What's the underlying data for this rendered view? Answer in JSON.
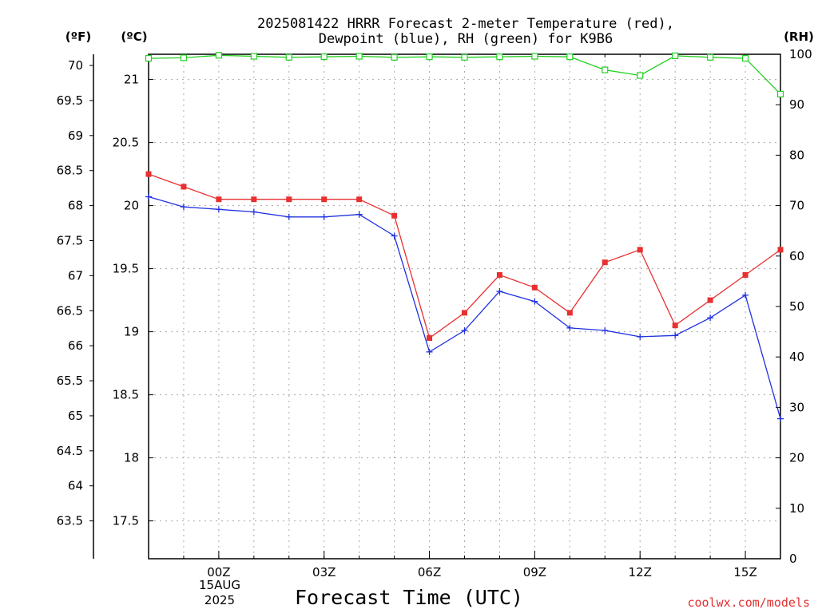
{
  "chart_data": {
    "type": "line",
    "title_line1": "2025081422 HRRR Forecast 2-meter Temperature (red),",
    "title_line2": "Dewpoint (blue), RH (green) for K9B6",
    "xlabel": "Forecast Time (UTC)",
    "credit": "coolwx.com/models",
    "units": {
      "f": "(ºF)",
      "c": "(ºC)",
      "rh": "(RH)"
    },
    "x": [
      "22Z",
      "23Z",
      "00Z",
      "01Z",
      "02Z",
      "03Z",
      "04Z",
      "05Z",
      "06Z",
      "07Z",
      "08Z",
      "09Z",
      "10Z",
      "11Z",
      "12Z",
      "13Z",
      "14Z",
      "15Z",
      "16Z"
    ],
    "x_tick_labels": [
      {
        "hour": "00Z",
        "index": 2
      },
      {
        "hour": "03Z",
        "index": 5
      },
      {
        "hour": "06Z",
        "index": 8
      },
      {
        "hour": "09Z",
        "index": 11
      },
      {
        "hour": "12Z",
        "index": 14
      },
      {
        "hour": "15Z",
        "index": 17
      }
    ],
    "date_label": {
      "day": "15AUG",
      "year": "2025"
    },
    "left_axis_f": {
      "ticks": [
        "70",
        "69.5",
        "69",
        "68.5",
        "68",
        "67.5",
        "67",
        "66.5",
        "66",
        "65.5",
        "65",
        "64.5",
        "64",
        "63.5"
      ]
    },
    "left_axis_c": {
      "ylim": [
        17.2,
        21.2
      ],
      "ticks": [
        "21",
        "20.5",
        "20",
        "19.5",
        "19",
        "18.5",
        "18",
        "17.5"
      ]
    },
    "right_axis_rh": {
      "ylim": [
        0,
        100
      ],
      "ticks": [
        "100",
        "90",
        "80",
        "70",
        "60",
        "50",
        "40",
        "30",
        "20",
        "10",
        "0"
      ]
    },
    "grid": true,
    "series": [
      {
        "key": "temp",
        "color": "#e83030",
        "marker": "filled-square",
        "axis": "c",
        "values": [
          20.25,
          20.15,
          20.05,
          20.05,
          20.05,
          20.05,
          20.05,
          19.92,
          18.95,
          19.15,
          19.45,
          19.35,
          19.15,
          19.55,
          19.65,
          19.05,
          19.25,
          19.45,
          19.65
        ]
      },
      {
        "key": "dewpoint",
        "color": "#2030e0",
        "marker": "plus",
        "axis": "c",
        "values": [
          20.07,
          19.99,
          19.97,
          19.95,
          19.91,
          19.91,
          19.93,
          19.76,
          18.84,
          19.01,
          19.32,
          19.24,
          19.03,
          19.01,
          18.96,
          18.97,
          19.11,
          19.29,
          18.31
        ]
      },
      {
        "key": "rh",
        "color": "#20d020",
        "marker": "open-square",
        "axis": "rh",
        "values": [
          99.2,
          99.3,
          99.8,
          99.6,
          99.4,
          99.5,
          99.6,
          99.4,
          99.5,
          99.4,
          99.5,
          99.6,
          99.5,
          96.9,
          95.8,
          99.7,
          99.4,
          99.2,
          92.1
        ]
      }
    ]
  }
}
